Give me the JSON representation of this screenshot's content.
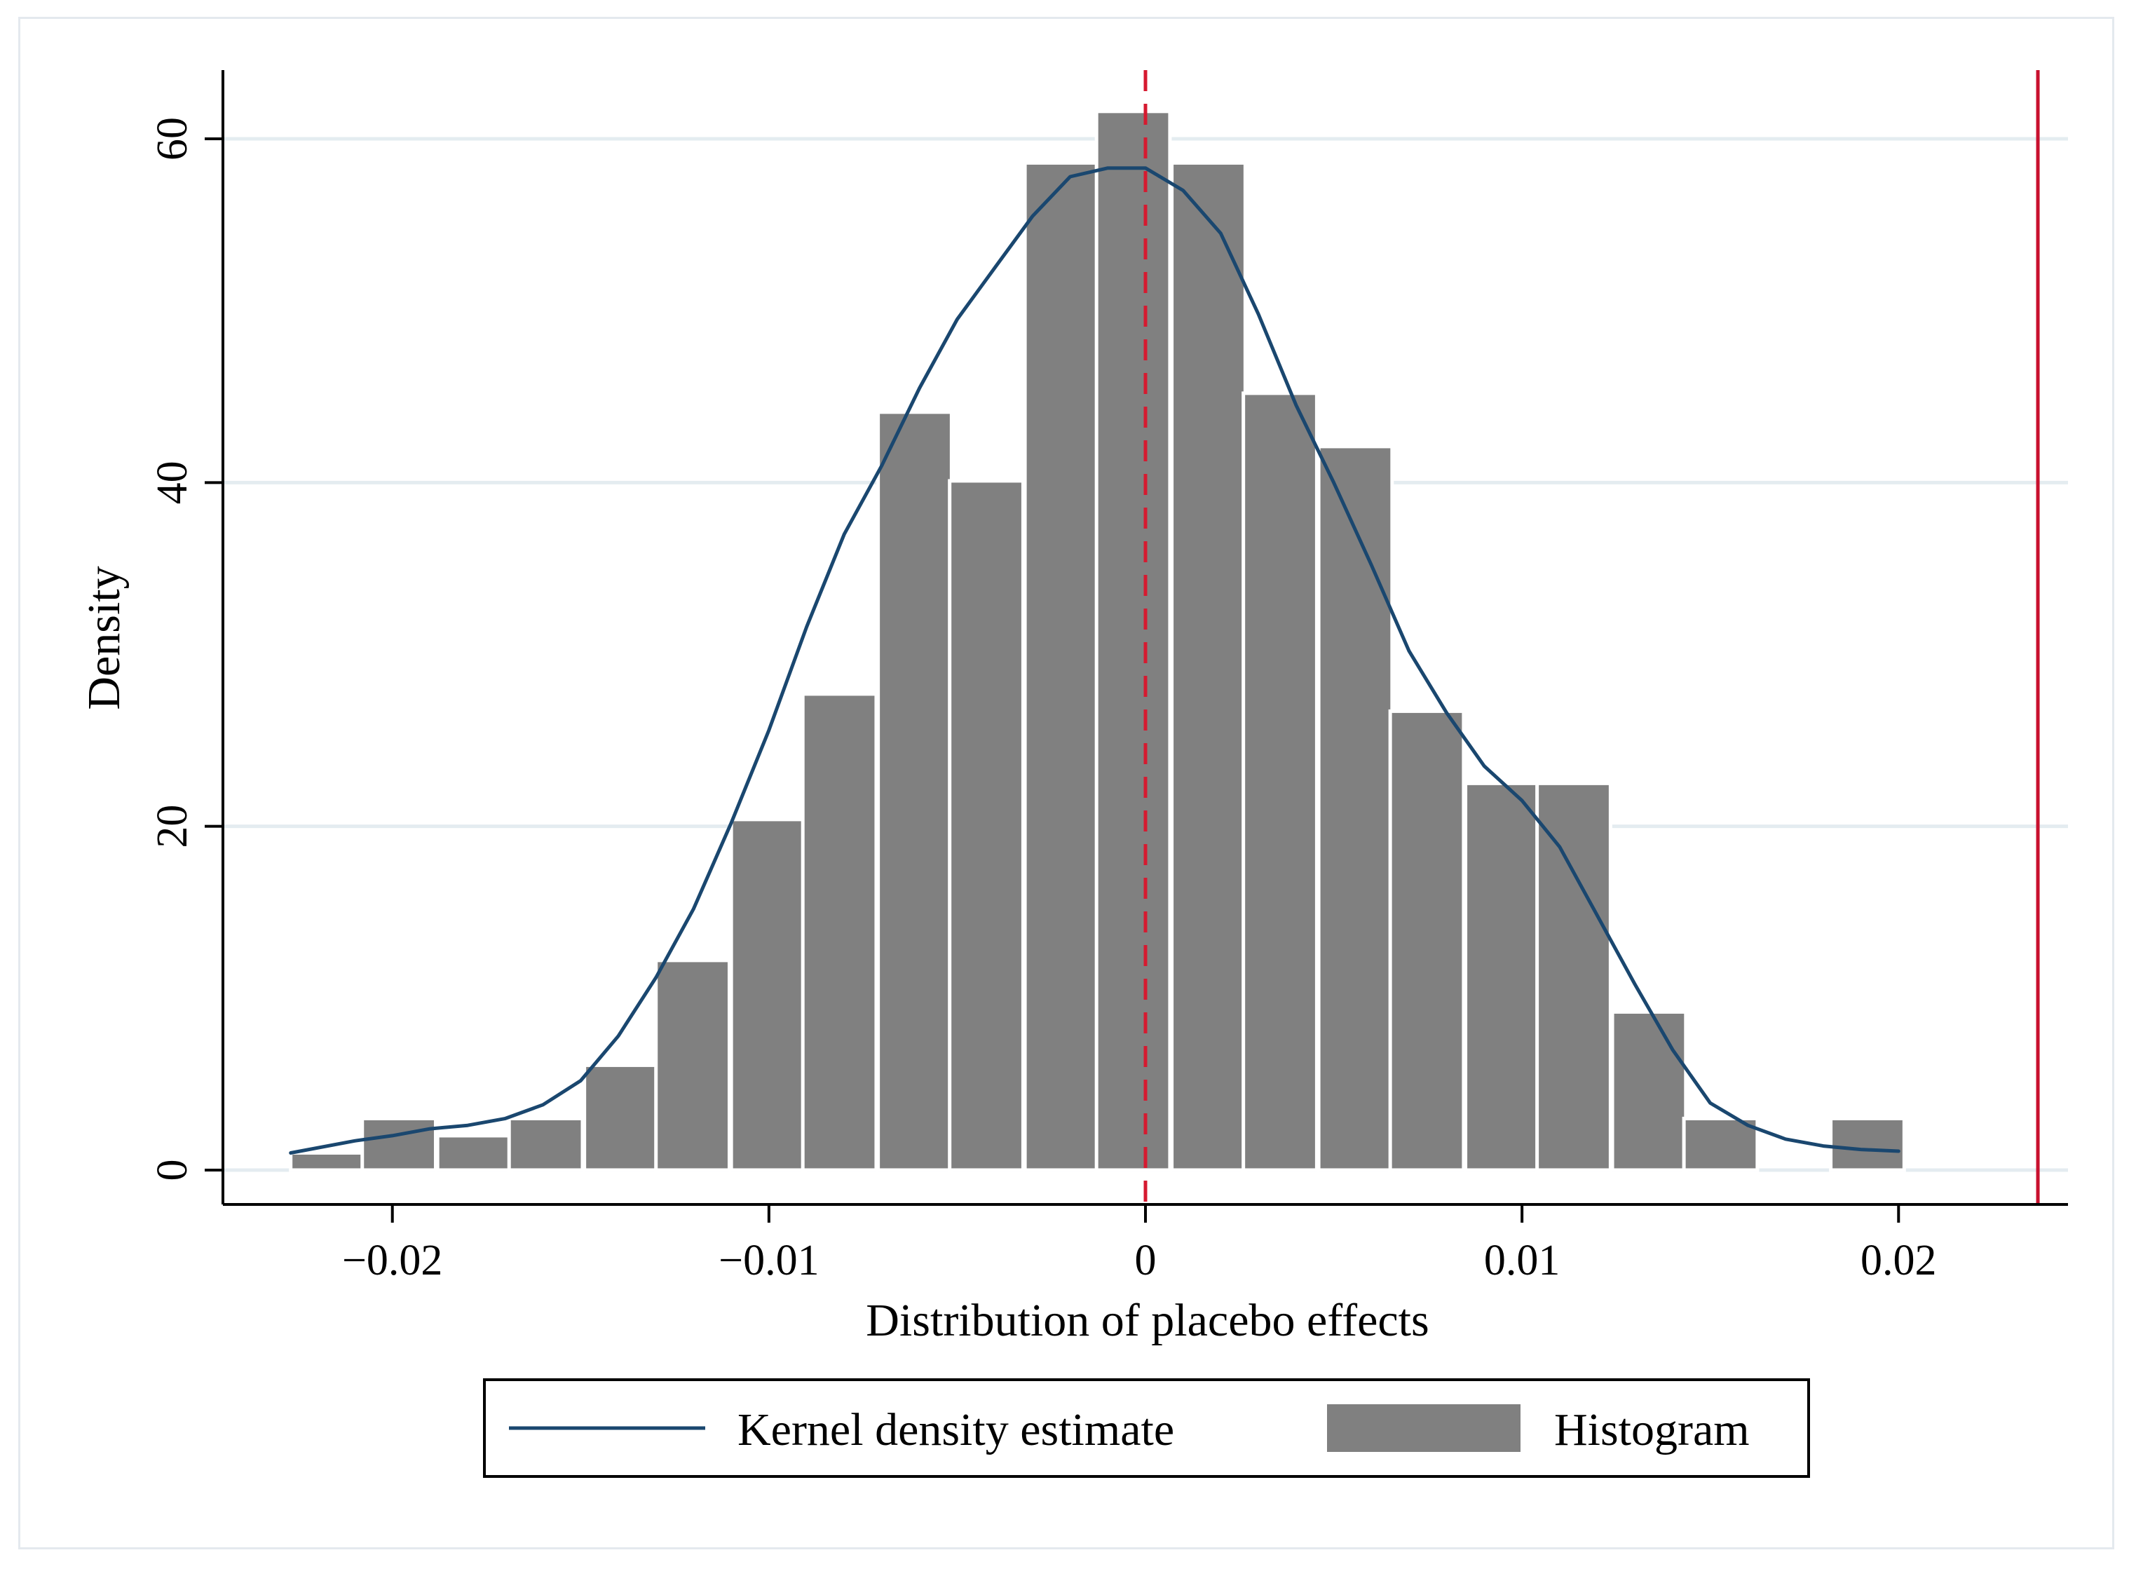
{
  "chart_data": {
    "type": "bar",
    "title": "",
    "xlabel": "Distribution of placebo effects",
    "ylabel": "Density",
    "xlim": [
      -0.0245,
      0.0245
    ],
    "ylim": [
      -2,
      64
    ],
    "grid": true,
    "legend_placement": "bottom-center",
    "x_ticks": [
      {
        "value": -0.02,
        "label": "−0.02"
      },
      {
        "value": -0.01,
        "label": "−0.01"
      },
      {
        "value": 0,
        "label": "0"
      },
      {
        "value": 0.01,
        "label": "0.01"
      },
      {
        "value": 0.02,
        "label": "0.02"
      }
    ],
    "y_ticks": [
      {
        "value": 0,
        "label": "0"
      },
      {
        "value": 20,
        "label": "20"
      },
      {
        "value": 40,
        "label": "40"
      },
      {
        "value": 60,
        "label": "60"
      }
    ],
    "histogram": {
      "name": "Histogram",
      "color": "#808080",
      "bin_width": 0.00195,
      "bins": [
        {
          "x0": -0.0227,
          "value": 1.0
        },
        {
          "x0": -0.0208,
          "value": 3.0
        },
        {
          "x0": -0.0188,
          "value": 2.0
        },
        {
          "x0": -0.0169,
          "value": 3.0
        },
        {
          "x0": -0.0149,
          "value": 6.1
        },
        {
          "x0": -0.013,
          "value": 12.2
        },
        {
          "x0": -0.011,
          "value": 20.4
        },
        {
          "x0": -0.0091,
          "value": 27.7
        },
        {
          "x0": -0.0071,
          "value": 44.1
        },
        {
          "x0": -0.0052,
          "value": 40.1
        },
        {
          "x0": -0.0032,
          "value": 58.6
        },
        {
          "x0": -0.0013,
          "value": 61.6
        },
        {
          "x0": 0.0007,
          "value": 58.6
        },
        {
          "x0": 0.0026,
          "value": 45.2
        },
        {
          "x0": 0.0046,
          "value": 42.1
        },
        {
          "x0": 0.0065,
          "value": 26.7
        },
        {
          "x0": 0.0085,
          "value": 22.5
        },
        {
          "x0": 0.0104,
          "value": 22.5
        },
        {
          "x0": 0.0124,
          "value": 9.2
        },
        {
          "x0": 0.0143,
          "value": 3.0
        },
        {
          "x0": 0.0163,
          "value": 0
        },
        {
          "x0": 0.0182,
          "value": 3.0
        }
      ]
    },
    "kde": {
      "name": "Kernel density estimate",
      "color": "#1a476f",
      "x": [
        -0.0227,
        -0.021,
        -0.02,
        -0.019,
        -0.018,
        -0.017,
        -0.016,
        -0.015,
        -0.014,
        -0.013,
        -0.012,
        -0.011,
        -0.01,
        -0.009,
        -0.008,
        -0.007,
        -0.006,
        -0.005,
        -0.004,
        -0.003,
        -0.002,
        -0.001,
        0.0,
        0.001,
        0.002,
        0.003,
        0.004,
        0.005,
        0.006,
        0.007,
        0.008,
        0.009,
        0.01,
        0.011,
        0.012,
        0.013,
        0.014,
        0.015,
        0.016,
        0.017,
        0.018,
        0.019,
        0.02
      ],
      "y": [
        1.0,
        1.7,
        2.0,
        2.4,
        2.6,
        3.0,
        3.8,
        5.2,
        7.8,
        11.2,
        15.2,
        20.2,
        25.6,
        31.6,
        37.0,
        41.0,
        45.5,
        49.5,
        52.5,
        55.5,
        57.8,
        58.3,
        58.3,
        57.0,
        54.5,
        49.8,
        44.5,
        40.0,
        35.2,
        30.2,
        26.6,
        23.5,
        21.5,
        18.8,
        14.8,
        10.8,
        7.0,
        3.9,
        2.6,
        1.8,
        1.4,
        1.2,
        1.1
      ]
    },
    "reference_lines": [
      {
        "name": "zero-reference-line",
        "x": 0,
        "style": "dashed",
        "color": "#d61a30"
      },
      {
        "name": "estimated-effect-line",
        "x": 0.0237,
        "style": "solid",
        "color": "#c8102e"
      }
    ],
    "legend": [
      {
        "key": "kde",
        "label": "Kernel density estimate"
      },
      {
        "key": "histogram",
        "label": "Histogram"
      }
    ]
  }
}
